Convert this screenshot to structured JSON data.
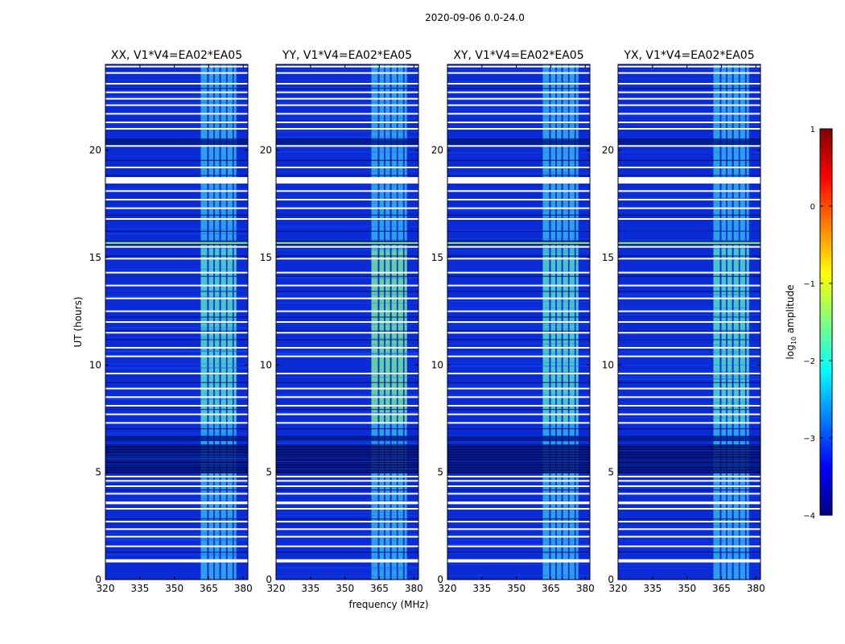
{
  "chart_data": {
    "type": "heatmap",
    "suptitle": "2020-09-06 0.0-24.0",
    "xlabel": "frequency (MHz)",
    "ylabel": "UT (hours)",
    "xlim": [
      320,
      382
    ],
    "ylim": [
      0,
      24
    ],
    "xticks": [
      "320",
      "335",
      "350",
      "365",
      "380"
    ],
    "xtick_values": [
      320,
      335,
      350,
      365,
      380
    ],
    "yticks": [
      "0",
      "5",
      "10",
      "15",
      "20"
    ],
    "ytick_values": [
      0,
      5,
      10,
      15,
      20
    ],
    "panels": [
      {
        "title": "XX, V1*V4=EA02*EA05",
        "polarization": "XX"
      },
      {
        "title": "YY, V1*V4=EA02*EA05",
        "polarization": "YY"
      },
      {
        "title": "XY, V1*V4=EA02*EA05",
        "polarization": "XY"
      },
      {
        "title": "YX, V1*V4=EA02*EA05",
        "polarization": "YX"
      }
    ],
    "colorbar": {
      "label": "log",
      "label_sub": "10",
      "label_suffix": " amplitude",
      "range": [
        -4,
        1
      ],
      "ticks": [
        "1",
        "0",
        "−1",
        "−2",
        "−3",
        "−4"
      ],
      "tick_values": [
        1,
        0,
        -1,
        -2,
        -3,
        -4
      ],
      "colormap": "jet",
      "colors": [
        "#00007f",
        "#0000ff",
        "#007fff",
        "#00ffff",
        "#7fff7f",
        "#ffff00",
        "#ff7f00",
        "#ff0000",
        "#7f0000"
      ]
    },
    "rfi_band_mhz": [
      361,
      377
    ],
    "flagged_ut_hours": [
      0.85,
      0.88,
      1.55,
      2.0,
      2.35,
      2.7,
      3.3,
      3.55,
      3.6,
      4.0,
      4.35,
      4.6,
      4.8,
      7.3,
      7.7,
      8.1,
      8.5,
      8.9,
      9.6,
      10.4,
      10.8,
      11.5,
      12.0,
      12.5,
      13.1,
      13.7,
      14.3,
      14.95,
      15.5,
      16.8,
      17.3,
      17.7,
      18.1,
      18.5,
      18.55,
      18.6,
      19.2,
      20.2,
      21.0,
      21.3,
      21.7,
      22.1,
      22.4,
      22.7,
      23.1,
      23.6,
      23.9
    ],
    "dark_ut_ranges": [
      [
        4.95,
        6.3
      ],
      [
        6.45,
        6.7
      ],
      [
        15.6,
        15.8
      ],
      [
        20.25,
        20.5
      ]
    ],
    "dark_ut_lines": [
      1.3,
      2.85,
      4.2,
      7.05,
      7.95,
      9.2,
      11.2,
      11.6,
      12.25,
      13.45,
      14.15,
      15.1,
      16.25,
      17.0,
      18.85,
      19.55,
      20.55,
      22.9
    ]
  }
}
